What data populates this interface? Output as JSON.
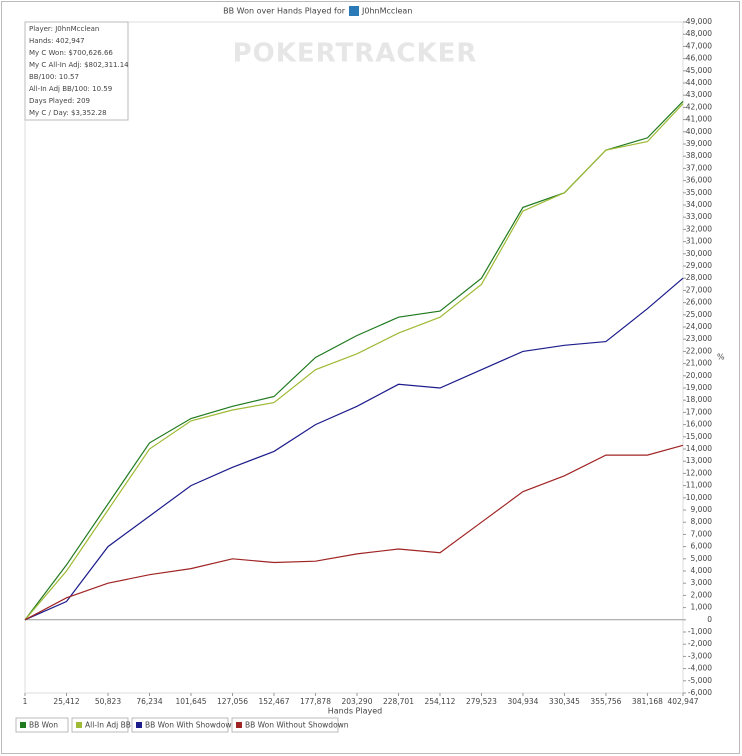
{
  "chart_data": {
    "type": "line",
    "title": "BB Won over Hands Played for",
    "title_player": "J0hnMcclean",
    "watermark": "POKERTRACKER",
    "info_lines": [
      "Player: J0hnMcclean",
      "Hands: 402,947",
      "My C Won: $700,626.66",
      "My C All-In Adj: $802,311.14",
      "BB/100: 10.57",
      "All-In Adj BB/100: 10.59",
      "Days Played: 209",
      "My C / Day: $3,352.28"
    ],
    "x_label": "Hands Played",
    "y_label": "%",
    "x": [
      1,
      25412,
      50823,
      76234,
      101645,
      127056,
      152467,
      177878,
      203290,
      228701,
      254112,
      279523,
      304934,
      330345,
      355756,
      381168,
      402947
    ],
    "series": [
      {
        "name": "BB Won",
        "color": "#1f7a1f",
        "values": [
          0,
          4500,
          9500,
          14500,
          16500,
          17500,
          18300,
          21500,
          23300,
          24800,
          25300,
          28000,
          33800,
          35000,
          38500,
          39500,
          42500
        ]
      },
      {
        "name": "All-In Adj BB",
        "color": "#9fba35",
        "values": [
          0,
          4000,
          9000,
          14000,
          16300,
          17200,
          17800,
          20500,
          21800,
          23500,
          24800,
          27500,
          33500,
          35000,
          38500,
          39200,
          42300
        ]
      },
      {
        "name": "BB Won With Showdown",
        "color": "#1c1c8c",
        "values": [
          0,
          1500,
          6000,
          8500,
          11000,
          12500,
          13800,
          16000,
          17500,
          19300,
          19000,
          20500,
          22000,
          22500,
          22800,
          25500,
          28000
        ]
      },
      {
        "name": "BB Won Without Showdown",
        "color": "#a02424",
        "values": [
          0,
          1800,
          3000,
          3700,
          4200,
          5000,
          4700,
          4800,
          5400,
          5800,
          5500,
          8000,
          10500,
          11800,
          13500,
          13500,
          14300
        ]
      }
    ],
    "xlim": [
      1,
      402947
    ],
    "xticks": [
      1,
      {
        "value": 25412,
        "label": "25,412"
      },
      {
        "value": 50823,
        "label": "50,823"
      },
      {
        "value": 76234,
        "label": "76,234"
      },
      {
        "value": 101645,
        "label": "101,645"
      },
      {
        "value": 127056,
        "label": "127,056"
      },
      {
        "value": 152467,
        "label": "152,467"
      },
      {
        "value": 177878,
        "label": "177,878"
      },
      {
        "value": 203290,
        "label": "203,290"
      },
      {
        "value": 228701,
        "label": "228,701"
      },
      {
        "value": 254112,
        "label": "254,112"
      },
      {
        "value": 279523,
        "label": "279,523"
      },
      {
        "value": 304934,
        "label": "304,934"
      },
      {
        "value": 330345,
        "label": "330,345"
      },
      {
        "value": 355756,
        "label": "355,756"
      },
      {
        "value": 381168,
        "label": "381,168"
      },
      {
        "value": 402947,
        "label": "402,947"
      }
    ],
    "ylim": [
      -6000,
      49000
    ],
    "yticks": [
      {
        "value": -6000,
        "label": "-6,000"
      },
      {
        "value": -5000,
        "label": "-5,000"
      },
      {
        "value": -4000,
        "label": "-4,000"
      },
      {
        "value": -3000,
        "label": "-3,000"
      },
      {
        "value": -2000,
        "label": "-2,000"
      },
      {
        "value": -1000,
        "label": "-1,000"
      },
      0,
      {
        "value": 1000,
        "label": "1,000"
      },
      {
        "value": 2000,
        "label": "2,000"
      },
      {
        "value": 3000,
        "label": "3,000"
      },
      {
        "value": 4000,
        "label": "4,000"
      },
      {
        "value": 5000,
        "label": "5,000"
      },
      {
        "value": 6000,
        "label": "6,000"
      },
      {
        "value": 7000,
        "label": "7,000"
      },
      {
        "value": 8000,
        "label": "8,000"
      },
      {
        "value": 9000,
        "label": "9,000"
      },
      {
        "value": 10000,
        "label": "10,000"
      },
      {
        "value": 11000,
        "label": "11,000"
      },
      {
        "value": 12000,
        "label": "12,000"
      },
      {
        "value": 13000,
        "label": "13,000"
      },
      {
        "value": 14000,
        "label": "14,000"
      },
      {
        "value": 15000,
        "label": "15,000"
      },
      {
        "value": 16000,
        "label": "16,000"
      },
      {
        "value": 17000,
        "label": "17,000"
      },
      {
        "value": 18000,
        "label": "18,000"
      },
      {
        "value": 19000,
        "label": "19,000"
      },
      {
        "value": 20000,
        "label": "20,000"
      },
      {
        "value": 21000,
        "label": "21,000"
      },
      {
        "value": 22000,
        "label": "22,000"
      },
      {
        "value": 23000,
        "label": "23,000"
      },
      {
        "value": 24000,
        "label": "24,000"
      },
      {
        "value": 25000,
        "label": "25,000"
      },
      {
        "value": 26000,
        "label": "26,000"
      },
      {
        "value": 27000,
        "label": "27,000"
      },
      {
        "value": 28000,
        "label": "28,000"
      },
      {
        "value": 29000,
        "label": "29,000"
      },
      {
        "value": 30000,
        "label": "30,000"
      },
      {
        "value": 31000,
        "label": "31,000"
      },
      {
        "value": 32000,
        "label": "32,000"
      },
      {
        "value": 33000,
        "label": "33,000"
      },
      {
        "value": 34000,
        "label": "34,000"
      },
      {
        "value": 35000,
        "label": "35,000"
      },
      {
        "value": 36000,
        "label": "36,000"
      },
      {
        "value": 37000,
        "label": "37,000"
      },
      {
        "value": 38000,
        "label": "38,000"
      },
      {
        "value": 39000,
        "label": "39,000"
      },
      {
        "value": 40000,
        "label": "40,000"
      },
      {
        "value": 41000,
        "label": "41,000"
      },
      {
        "value": 42000,
        "label": "42,000"
      },
      {
        "value": 43000,
        "label": "43,000"
      },
      {
        "value": 44000,
        "label": "44,000"
      },
      {
        "value": 45000,
        "label": "45,000"
      },
      {
        "value": 46000,
        "label": "46,000"
      },
      {
        "value": 47000,
        "label": "47,000"
      },
      {
        "value": 48000,
        "label": "48,000"
      },
      {
        "value": 49000,
        "label": "49,000"
      }
    ],
    "grid": false
  }
}
